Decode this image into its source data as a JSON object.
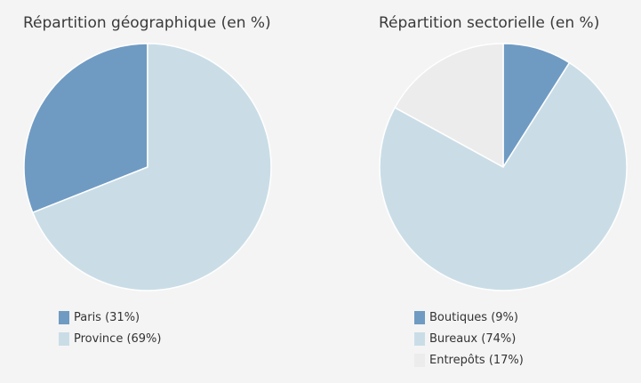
{
  "colors": {
    "dark_blue": "#6f9bc3",
    "light_blue": "#cadde7",
    "light_gray": "#ececec",
    "slice_border": "#ffffff",
    "background": "#f4f4f4"
  },
  "chart_data": [
    {
      "type": "pie",
      "title": "Répartition géographique (en %)",
      "slices": [
        {
          "label": "Paris (31%)",
          "value": 31,
          "color": "#6f9bc3"
        },
        {
          "label": "Province (69%)",
          "value": 69,
          "color": "#cadde7"
        }
      ],
      "start": "12 o'clock",
      "direction": "counterclockwise",
      "legend": "bottom-left"
    },
    {
      "type": "pie",
      "title": "Répartition sectorielle (en %)",
      "slices": [
        {
          "label": "Boutiques (9%)",
          "value": 9,
          "color": "#6f9bc3"
        },
        {
          "label": "Bureaux (74%)",
          "value": 74,
          "color": "#cadde7"
        },
        {
          "label": "Entrepôts (17%)",
          "value": 17,
          "color": "#ececec"
        }
      ],
      "start": "12 o'clock",
      "direction": "clockwise",
      "legend": "bottom-left"
    }
  ]
}
